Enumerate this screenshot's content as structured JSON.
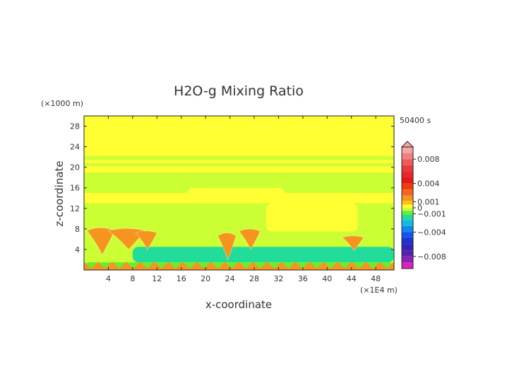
{
  "chart_data": {
    "type": "heatmap",
    "title": "H2O-g Mixing Ratio",
    "xlabel": "x-coordinate",
    "ylabel": "z-coordinate",
    "x_unit": "(×1E4 m)",
    "y_unit": "(×1000 m)",
    "time_label": "50400 s",
    "xlim": [
      0,
      51
    ],
    "ylim": [
      0,
      30
    ],
    "x_ticks": [
      4,
      8,
      12,
      16,
      20,
      24,
      28,
      32,
      36,
      40,
      44,
      48
    ],
    "y_ticks": [
      4,
      8,
      12,
      16,
      20,
      24,
      28
    ],
    "colorbar": {
      "vmin": -0.01,
      "vmax": 0.01,
      "tick_labels": [
        {
          "value": 0.008,
          "label": "0.008"
        },
        {
          "value": 0.004,
          "label": "0.004"
        },
        {
          "value": 0.001,
          "label": "0.001"
        },
        {
          "value": 0,
          "label": "0"
        },
        {
          "value": -0.001,
          "label": "−0.001"
        },
        {
          "value": -0.004,
          "label": "−0.004"
        },
        {
          "value": -0.008,
          "label": "−0.008"
        }
      ],
      "levels": [
        {
          "value": 0.0095,
          "color": "#f7a6a6"
        },
        {
          "value": 0.0085,
          "color": "#f08080"
        },
        {
          "value": 0.0075,
          "color": "#ec5a5a"
        },
        {
          "value": 0.0065,
          "color": "#e83c3c"
        },
        {
          "value": 0.0055,
          "color": "#e62828"
        },
        {
          "value": 0.0045,
          "color": "#e81818"
        },
        {
          "value": 0.0035,
          "color": "#f23b0b"
        },
        {
          "value": 0.0025,
          "color": "#f26522"
        },
        {
          "value": 0.0015,
          "color": "#f7941d"
        },
        {
          "value": 0.00075,
          "color": "#ffc20e"
        },
        {
          "value": 0.00025,
          "color": "#ffff33"
        },
        {
          "value": -0.00025,
          "color": "#ccff33"
        },
        {
          "value": -0.00075,
          "color": "#66ee33"
        },
        {
          "value": -0.0015,
          "color": "#22dd99"
        },
        {
          "value": -0.0025,
          "color": "#11bbdd"
        },
        {
          "value": -0.0035,
          "color": "#1188ee"
        },
        {
          "value": -0.0045,
          "color": "#1155ee"
        },
        {
          "value": -0.0055,
          "color": "#2233cc"
        },
        {
          "value": -0.0065,
          "color": "#3322bb"
        },
        {
          "value": -0.0075,
          "color": "#5522aa"
        },
        {
          "value": -0.0085,
          "color": "#8822bb"
        },
        {
          "value": -0.0095,
          "color": "#dd22bb"
        }
      ]
    },
    "features": [
      {
        "type": "band",
        "z_range": [
          13,
          30
        ],
        "value": 0.0003
      },
      {
        "type": "band",
        "z_range": [
          20.2,
          20.8
        ],
        "value": -0.0004
      },
      {
        "type": "band",
        "z_range": [
          21.4,
          22.2
        ],
        "value": -0.0004
      },
      {
        "type": "band",
        "z_range": [
          15,
          19
        ],
        "value": -0.0004
      },
      {
        "type": "band",
        "z_range": [
          3.5,
          12.5
        ],
        "value": -0.0004
      },
      {
        "type": "region",
        "x_range": [
          30,
          45
        ],
        "z_range": [
          7.5,
          13
        ],
        "value": 0.0003
      },
      {
        "type": "region",
        "x_range": [
          17,
          33
        ],
        "z_range": [
          13,
          16
        ],
        "value": 0.0003
      },
      {
        "type": "region",
        "x_range": [
          8,
          51
        ],
        "z_range": [
          1.5,
          4.5
        ],
        "value": -0.0015
      },
      {
        "type": "region",
        "x_range": [
          0,
          51
        ],
        "z_range": [
          0,
          1.5
        ],
        "value": -0.0008
      },
      {
        "type": "plume",
        "x_range": [
          0.5,
          5
        ],
        "z_range": [
          3,
          8.5
        ],
        "value": 0.0015
      },
      {
        "type": "plume",
        "x_range": [
          4,
          10
        ],
        "z_range": [
          4,
          8.3
        ],
        "value": 0.0015
      },
      {
        "type": "plume",
        "x_range": [
          8.5,
          12
        ],
        "z_range": [
          4,
          7.8
        ],
        "value": 0.0015
      },
      {
        "type": "plume",
        "x_range": [
          22,
          25
        ],
        "z_range": [
          2,
          7.5
        ],
        "value": 0.0015
      },
      {
        "type": "plume",
        "x_range": [
          25.5,
          29
        ],
        "z_range": [
          4,
          8.2
        ],
        "value": 0.0015
      },
      {
        "type": "plume",
        "x_range": [
          42.5,
          46
        ],
        "z_range": [
          3.8,
          6.8
        ],
        "value": 0.0015
      },
      {
        "type": "surface",
        "x_range": [
          0,
          51
        ],
        "z_range": [
          0,
          2.5
        ],
        "value": 0.0015
      }
    ]
  }
}
